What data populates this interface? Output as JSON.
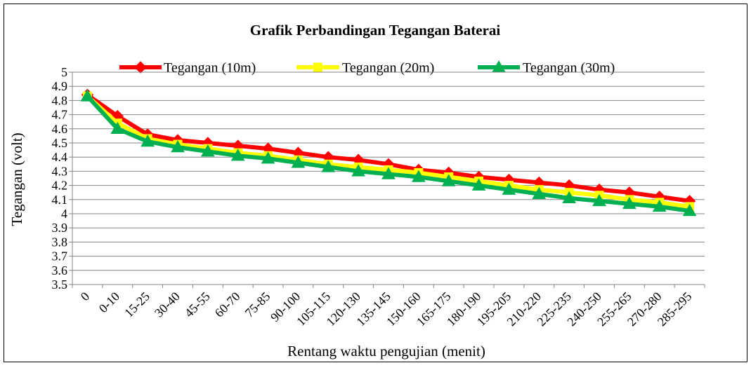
{
  "chart_data": {
    "type": "line",
    "title": "Grafik Perbandingan Tegangan Baterai",
    "xlabel": "Rentang waktu pengujian (menit)",
    "ylabel": "Tegangan (volt)",
    "ylim": [
      3.5,
      5
    ],
    "ytick_step": 0.1,
    "grid": true,
    "legend_position": "top",
    "categories": [
      "0",
      "0-10",
      "15-25",
      "30-40",
      "45-55",
      "60-70",
      "75-85",
      "90-100",
      "105-115",
      "120-130",
      "135-145",
      "150-160",
      "165-175",
      "180-190",
      "195-205",
      "210-220",
      "225-235",
      "240-250",
      "255-265",
      "270-280",
      "285-295"
    ],
    "series": [
      {
        "name": "Tegangan (10m)",
        "color": "#ff0000",
        "marker": "diamond",
        "values": [
          4.84,
          4.69,
          4.56,
          4.52,
          4.5,
          4.48,
          4.46,
          4.43,
          4.4,
          4.38,
          4.35,
          4.31,
          4.29,
          4.26,
          4.24,
          4.22,
          4.2,
          4.17,
          4.15,
          4.12,
          4.09
        ]
      },
      {
        "name": "Tegangan (20m)",
        "color": "#ffff00",
        "marker": "square",
        "values": [
          4.83,
          4.64,
          4.53,
          4.49,
          4.46,
          4.43,
          4.41,
          4.38,
          4.35,
          4.33,
          4.31,
          4.29,
          4.26,
          4.23,
          4.2,
          4.17,
          4.15,
          4.13,
          4.1,
          4.08,
          4.05
        ]
      },
      {
        "name": "Tegangan (30m)",
        "color": "#00b050",
        "marker": "triangle",
        "values": [
          4.83,
          4.6,
          4.51,
          4.47,
          4.44,
          4.41,
          4.39,
          4.36,
          4.33,
          4.3,
          4.28,
          4.26,
          4.23,
          4.2,
          4.17,
          4.14,
          4.11,
          4.09,
          4.07,
          4.05,
          4.02
        ]
      }
    ]
  }
}
